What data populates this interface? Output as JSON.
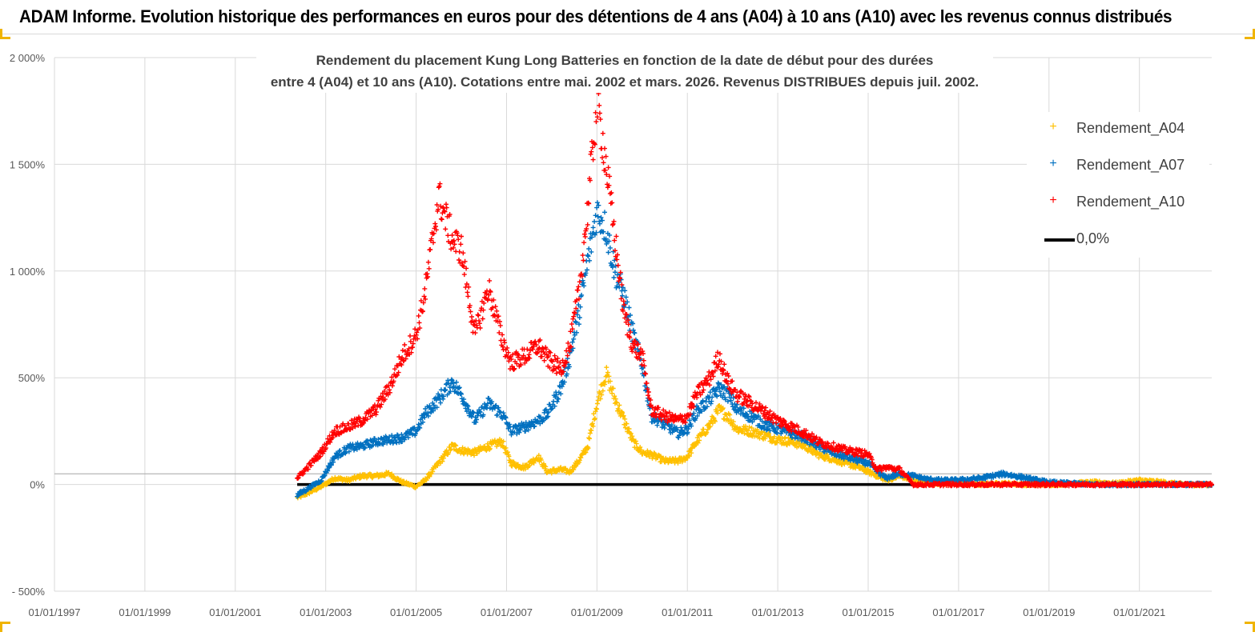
{
  "banner": {
    "title": "ADAM Informe. Evolution historique des performances en euros pour des détentions de 4 ans (A04) à 10 ans (A10) avec les revenus connus distribués"
  },
  "chart_data": {
    "type": "scatter",
    "title_line1": "Rendement du placement Kung Long Batteries  en fonction de la date de début pour des durées",
    "title_line2": "entre 4 (A04) et 10 ans (A10). Cotations entre mai. 2002 et mars. 2026. Revenus DISTRIBUES depuis juil. 2002.",
    "xlabel": "",
    "ylabel": "",
    "x_range_years": [
      1997.0,
      2022.6
    ],
    "ylim": [
      -500,
      2000
    ],
    "y_ticks": [
      -500,
      0,
      500,
      1000,
      1500,
      2000
    ],
    "y_tick_labels": [
      "- 500%",
      "0%",
      "500%",
      "1 000%",
      "1 500%",
      "2 000%"
    ],
    "x_ticks": [
      1997,
      1999,
      2001,
      2003,
      2005,
      2007,
      2009,
      2011,
      2013,
      2015,
      2017,
      2019,
      2021
    ],
    "x_tick_labels": [
      "01/01/1997",
      "01/01/1999",
      "01/01/2001",
      "01/01/2003",
      "01/01/2005",
      "01/01/2007",
      "01/01/2009",
      "01/01/2011",
      "01/01/2013",
      "01/01/2015",
      "01/01/2017",
      "01/01/2019",
      "01/01/2021"
    ],
    "grid": true,
    "reference_line_value": 50,
    "legend_position": "top-right",
    "series": [
      {
        "name": "Rendement_A04",
        "color": "#FFC000",
        "marker": "+",
        "x": [
          2002.37,
          2002.6,
          2002.9,
          2003.2,
          2003.5,
          2003.8,
          2004.1,
          2004.4,
          2004.7,
          2005.0,
          2005.2,
          2005.5,
          2005.8,
          2006.0,
          2006.3,
          2006.6,
          2006.9,
          2007.1,
          2007.4,
          2007.7,
          2007.9,
          2008.2,
          2008.4,
          2008.6,
          2008.8,
          2009.0,
          2009.2,
          2009.4,
          2009.6,
          2009.8,
          2010.0,
          2010.2,
          2010.5,
          2010.8,
          2011.0,
          2011.2,
          2011.5,
          2011.7,
          2011.9,
          2012.1,
          2012.4,
          2012.7,
          2013.0,
          2013.3,
          2013.6,
          2013.9,
          2014.2,
          2014.5,
          2014.8,
          2015.0,
          2015.2,
          2015.4,
          2015.7,
          2016.0,
          2016.3,
          2016.6,
          2017.0,
          2017.5,
          2018.0,
          2018.5,
          2019.0,
          2019.5,
          2020.0,
          2020.5,
          2021.0,
          2021.5,
          2022.0,
          2022.6
        ],
        "values": [
          -60,
          -40,
          -10,
          30,
          20,
          40,
          40,
          50,
          10,
          -10,
          20,
          100,
          180,
          160,
          150,
          180,
          200,
          100,
          80,
          130,
          60,
          70,
          60,
          110,
          180,
          380,
          520,
          400,
          300,
          200,
          150,
          140,
          110,
          110,
          130,
          200,
          280,
          350,
          320,
          260,
          250,
          230,
          210,
          200,
          180,
          140,
          120,
          100,
          80,
          60,
          40,
          20,
          40,
          20,
          10,
          5,
          5,
          0,
          5,
          0,
          0,
          5,
          10,
          5,
          20,
          10,
          0,
          0
        ]
      },
      {
        "name": "Rendement_A07",
        "color": "#0070C0",
        "marker": "+",
        "x": [
          2002.37,
          2002.6,
          2002.9,
          2003.2,
          2003.5,
          2003.8,
          2004.1,
          2004.4,
          2004.7,
          2005.0,
          2005.2,
          2005.5,
          2005.8,
          2006.0,
          2006.3,
          2006.6,
          2006.9,
          2007.1,
          2007.4,
          2007.7,
          2007.9,
          2008.2,
          2008.4,
          2008.6,
          2008.8,
          2009.0,
          2009.2,
          2009.4,
          2009.6,
          2009.8,
          2010.0,
          2010.2,
          2010.5,
          2010.8,
          2011.0,
          2011.2,
          2011.5,
          2011.7,
          2011.9,
          2012.1,
          2012.4,
          2012.7,
          2013.0,
          2013.3,
          2013.6,
          2013.9,
          2014.2,
          2014.5,
          2014.8,
          2015.0,
          2015.2,
          2015.4,
          2015.7,
          2016.0,
          2016.3,
          2016.6,
          2017.0,
          2017.5,
          2018.0,
          2018.5,
          2019.0,
          2019.5,
          2020.0,
          2020.5,
          2021.0,
          2021.5,
          2022.0,
          2022.6
        ],
        "values": [
          -50,
          -20,
          20,
          130,
          170,
          180,
          200,
          210,
          220,
          250,
          330,
          400,
          480,
          420,
          300,
          380,
          330,
          250,
          270,
          300,
          330,
          450,
          600,
          800,
          1050,
          1280,
          1200,
          1000,
          880,
          700,
          560,
          320,
          280,
          240,
          260,
          340,
          400,
          450,
          420,
          350,
          320,
          280,
          260,
          240,
          220,
          180,
          150,
          130,
          110,
          100,
          60,
          30,
          50,
          40,
          25,
          20,
          20,
          30,
          50,
          30,
          10,
          5,
          0,
          0,
          0,
          0,
          0,
          0
        ]
      },
      {
        "name": "Rendement_A10",
        "color": "#FF0000",
        "marker": "+",
        "x": [
          2002.37,
          2002.6,
          2002.9,
          2003.2,
          2003.5,
          2003.8,
          2004.1,
          2004.4,
          2004.7,
          2005.0,
          2005.2,
          2005.5,
          2005.8,
          2006.0,
          2006.3,
          2006.6,
          2006.9,
          2007.1,
          2007.4,
          2007.7,
          2007.9,
          2008.2,
          2008.4,
          2008.6,
          2008.8,
          2009.0,
          2009.2,
          2009.4,
          2009.6,
          2009.8,
          2010.0,
          2010.2,
          2010.5,
          2010.8,
          2011.0,
          2011.2,
          2011.5,
          2011.7,
          2011.9,
          2012.1,
          2012.4,
          2012.7,
          2013.0,
          2013.3,
          2013.6,
          2013.9,
          2014.2,
          2014.5,
          2014.8,
          2015.0,
          2015.2,
          2015.4,
          2015.7,
          2016.0,
          2016.3,
          2016.6,
          2017.0,
          2017.5,
          2018.0,
          2018.5,
          2019.0,
          2019.5,
          2020.0,
          2020.5,
          2021.0,
          2021.5,
          2022.0,
          2022.6
        ],
        "values": [
          30,
          80,
          150,
          250,
          270,
          300,
          350,
          450,
          600,
          700,
          900,
          1350,
          1150,
          1100,
          700,
          920,
          680,
          570,
          600,
          650,
          590,
          540,
          650,
          900,
          1300,
          1800,
          1500,
          1150,
          800,
          650,
          600,
          350,
          320,
          300,
          320,
          420,
          500,
          600,
          480,
          420,
          380,
          340,
          300,
          270,
          240,
          200,
          180,
          160,
          150,
          140,
          70,
          80,
          70,
          0,
          0,
          0,
          0,
          0,
          0,
          0,
          0,
          0,
          0,
          0,
          0,
          0,
          0,
          0
        ]
      },
      {
        "name": "0,0%",
        "color": "#000000",
        "marker": "line",
        "x": [
          2002.37,
          2022.6
        ],
        "values": [
          0,
          0
        ]
      }
    ]
  }
}
